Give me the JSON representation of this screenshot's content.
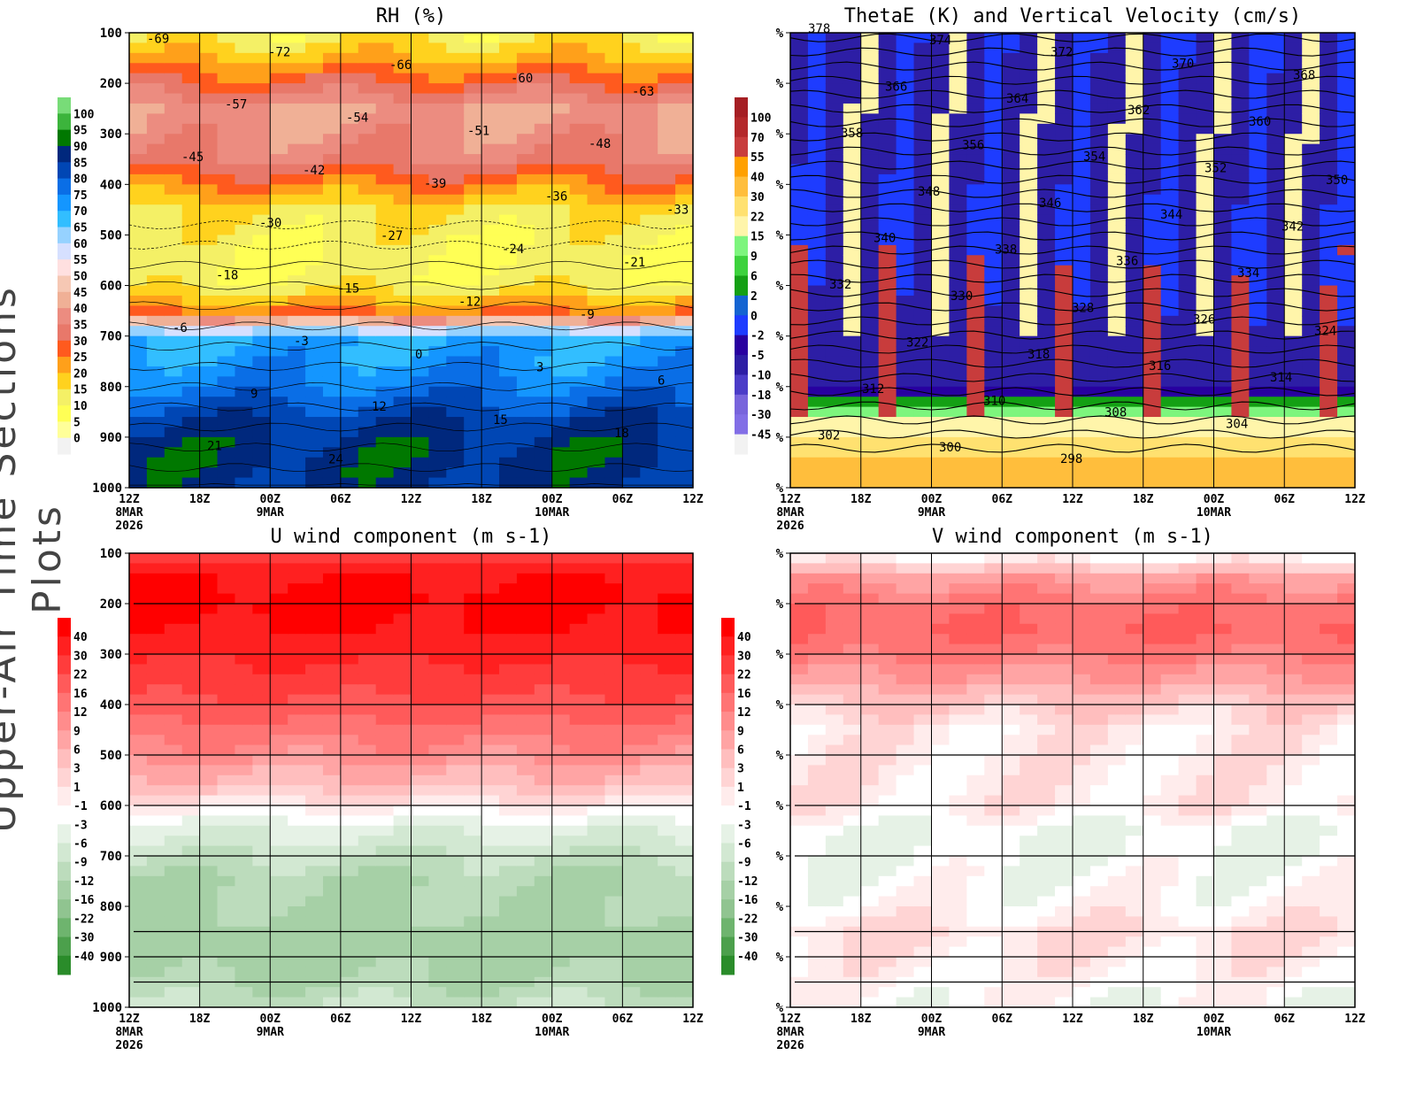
{
  "side_title": "Upper-Air Time Sections Plots",
  "chart_data": [
    {
      "type": "heatmap",
      "title": "RH (%)",
      "ylim": [
        1000,
        100
      ],
      "yticks": [
        "100",
        "200",
        "300",
        "400",
        "500",
        "600",
        "700",
        "800",
        "900",
        "1000"
      ],
      "xticks": [
        "12Z",
        "18Z",
        "00Z",
        "06Z",
        "12Z",
        "18Z",
        "00Z",
        "06Z",
        "12Z"
      ],
      "xdates": [
        [
          "8MAR",
          "2026"
        ],
        [],
        [
          "9MAR"
        ],
        [],
        [],
        [],
        [
          "10MAR"
        ],
        [],
        []
      ],
      "colorbar": {
        "labels": [
          "0",
          "5",
          "10",
          "15",
          "20",
          "25",
          "30",
          "35",
          "40",
          "45",
          "50",
          "55",
          "60",
          "65",
          "70",
          "75",
          "80",
          "85",
          "90",
          "95",
          "100"
        ],
        "colors": [
          "#f2f2f2",
          "#ffff99",
          "#ffff55",
          "#f4f066",
          "#ffd21e",
          "#ffa01a",
          "#ff5a1e",
          "#e8786a",
          "#ec8c80",
          "#f0b096",
          "#f6c8b4",
          "#ffe0e0",
          "#d6e0ff",
          "#96d2ff",
          "#32beff",
          "#1496ff",
          "#0a6ee6",
          "#0046b4",
          "#00287d",
          "#007800",
          "#3cb43c",
          "#78dc78"
        ]
      },
      "profile_levels": [
        100,
        150,
        200,
        250,
        300,
        350,
        400,
        450,
        500,
        550,
        600,
        650,
        700,
        750,
        800,
        850,
        900,
        950,
        1000
      ],
      "profile_values": [
        12,
        20,
        30,
        40,
        38,
        35,
        25,
        15,
        12,
        10,
        12,
        25,
        70,
        72,
        76,
        82,
        87,
        88,
        86
      ],
      "contour_labels": [
        "-69",
        "-72",
        "-66",
        "-60",
        "-63",
        "-57",
        "-54",
        "-51",
        "-48",
        "-45",
        "-42",
        "-39",
        "-36",
        "-33",
        "-30",
        "-27",
        "-24",
        "-21",
        "-18",
        "-15",
        "-12",
        "-9",
        "-6",
        "-3",
        "0",
        "3",
        "6",
        "9",
        "12",
        "15",
        "18",
        "21",
        "24"
      ]
    },
    {
      "type": "heatmap",
      "title": "ThetaE (K) and Vertical Velocity (cm/s)",
      "yticks": [
        "%",
        "%",
        "%",
        "%",
        "%",
        "%",
        "%",
        "%",
        "%",
        "%"
      ],
      "xticks": [
        "12Z",
        "18Z",
        "00Z",
        "06Z",
        "12Z",
        "18Z",
        "00Z",
        "06Z",
        "12Z"
      ],
      "xdates": [
        [
          "8MAR",
          "2026"
        ],
        [],
        [
          "9MAR"
        ],
        [],
        [],
        [],
        [
          "10MAR"
        ],
        [],
        []
      ],
      "colorbar": {
        "labels": [
          "100",
          "70",
          "55",
          "40",
          "30",
          "22",
          "15",
          "9",
          "6",
          "2",
          "0",
          "-2",
          "-5",
          "-10",
          "-18",
          "-30",
          "-45"
        ],
        "colors": [
          "#a51e23",
          "#b4282a",
          "#c83c3c",
          "#ffa000",
          "#ffbe3c",
          "#ffe170",
          "#fff5aa",
          "#7df57d",
          "#3cd23c",
          "#14a014",
          "#1464d2",
          "#1e3cff",
          "#2800a0",
          "#2d1ea5",
          "#4b3cc8",
          "#7864dc",
          "#826ee6",
          "#f2f2f2"
        ]
      },
      "profile_levels": [
        100,
        200,
        300,
        400,
        500,
        600,
        700,
        800,
        850,
        900,
        950,
        1000
      ],
      "profile_values": [
        -5,
        -10,
        -10,
        -10,
        -10,
        -10,
        -10,
        -5,
        9,
        25,
        30,
        30
      ],
      "contour_labels": [
        "378",
        "374",
        "372",
        "370",
        "368",
        "366",
        "364",
        "362",
        "360",
        "358",
        "356",
        "354",
        "352",
        "350",
        "348",
        "346",
        "344",
        "342",
        "340",
        "338",
        "336",
        "334",
        "332",
        "330",
        "328",
        "326",
        "324",
        "322",
        "318",
        "316",
        "314",
        "312",
        "310",
        "308",
        "304",
        "302",
        "300",
        "298"
      ]
    },
    {
      "type": "heatmap",
      "title": "U wind component (m s-1)",
      "yticks": [
        "100",
        "200",
        "300",
        "400",
        "500",
        "600",
        "700",
        "800",
        "900",
        "1000"
      ],
      "xticks": [
        "12Z",
        "18Z",
        "00Z",
        "06Z",
        "12Z",
        "18Z",
        "00Z",
        "06Z",
        "12Z"
      ],
      "xdates": [
        [
          "8MAR",
          "2026"
        ],
        [],
        [
          "9MAR"
        ],
        [],
        [],
        [],
        [
          "10MAR"
        ],
        [],
        []
      ],
      "colorbar": {
        "labels": [
          "40",
          "30",
          "22",
          "16",
          "12",
          "9",
          "6",
          "3",
          "1",
          "-1",
          "-3",
          "-6",
          "-9",
          "-12",
          "-16",
          "-22",
          "-30",
          "-40"
        ],
        "colors": [
          "#ff0000",
          "#ff2020",
          "#ff3c3c",
          "#ff5a5a",
          "#ff7474",
          "#ff8c8c",
          "#ffa4a4",
          "#ffbebe",
          "#ffd4d4",
          "#ffecec",
          "#ffffff",
          "#e6f2e6",
          "#d2e8d2",
          "#bcdcbc",
          "#a6d0a6",
          "#90c490",
          "#6eb46e",
          "#4ca04c",
          "#2a8c2a"
        ]
      },
      "profile_levels": [
        100,
        150,
        200,
        250,
        300,
        350,
        400,
        450,
        500,
        550,
        600,
        650,
        700,
        750,
        800,
        850,
        900,
        950,
        1000
      ],
      "profile_values": [
        25,
        40,
        42,
        40,
        32,
        26,
        20,
        14,
        10,
        5,
        0,
        -5,
        -9,
        -12,
        -12,
        -14,
        -14,
        -12,
        -9
      ]
    },
    {
      "type": "heatmap",
      "title": "V wind component (m s-1)",
      "yticks": [
        "%",
        "%",
        "%",
        "%",
        "%",
        "%",
        "%",
        "%",
        "%",
        "%"
      ],
      "xticks": [
        "12Z",
        "18Z",
        "00Z",
        "06Z",
        "12Z",
        "18Z",
        "00Z",
        "06Z",
        "12Z"
      ],
      "xdates": [
        [
          "8MAR",
          "2026"
        ],
        [],
        [
          "9MAR"
        ],
        [],
        [],
        [],
        [
          "10MAR"
        ],
        [],
        []
      ],
      "colorbar": {
        "labels": [
          "40",
          "30",
          "22",
          "16",
          "12",
          "9",
          "6",
          "3",
          "1",
          "-1",
          "-3",
          "-6",
          "-9",
          "-12",
          "-16",
          "-22",
          "-30",
          "-40"
        ],
        "colors": [
          "#ff0000",
          "#ff2020",
          "#ff3c3c",
          "#ff5a5a",
          "#ff7474",
          "#ff8c8c",
          "#ffa4a4",
          "#ffbebe",
          "#ffd4d4",
          "#ffecec",
          "#ffffff",
          "#e6f2e6",
          "#d2e8d2",
          "#bcdcbc",
          "#a6d0a6",
          "#90c490",
          "#6eb46e",
          "#4ca04c",
          "#2a8c2a"
        ]
      },
      "profile_levels": [
        100,
        150,
        200,
        250,
        300,
        350,
        400,
        450,
        500,
        600,
        650,
        700,
        800,
        850,
        900,
        950,
        1000
      ],
      "profile_values": [
        -3,
        8,
        14,
        16,
        13,
        8,
        3,
        0,
        0,
        0,
        -3,
        -3,
        -1,
        1,
        0,
        -1,
        -2
      ]
    }
  ]
}
